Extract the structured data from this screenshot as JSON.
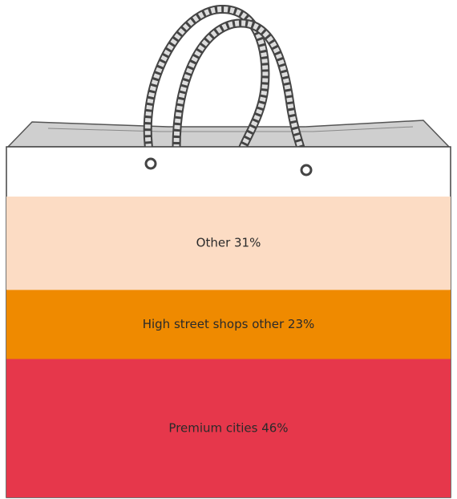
{
  "chart_data": {
    "type": "stacked-bar",
    "values": [
      46,
      23,
      31
    ],
    "value_labels": [
      "Premium cities 46%",
      "High street shops other 23%",
      "Other 31%"
    ],
    "colors": [
      "#e6374b",
      "#ef8a00",
      "#fcdcc4"
    ]
  }
}
